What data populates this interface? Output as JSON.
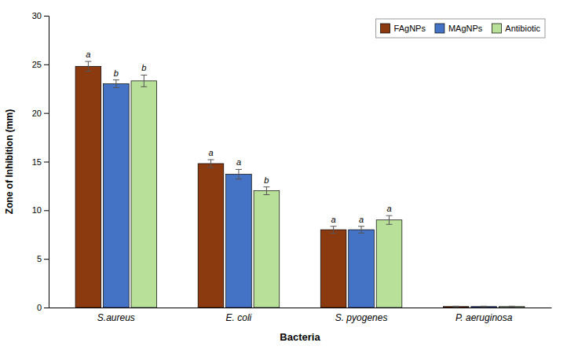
{
  "chart_data": {
    "type": "bar",
    "xlabel": "Bacteria",
    "ylabel": "Zone of Inhibition (mm)",
    "categories": [
      "S.aureus",
      "E. coli",
      "S. pyogenes",
      "P. aeruginosa"
    ],
    "series": [
      {
        "name": "FAgNPs",
        "color": "#8B3A0F",
        "values": [
          24.8,
          14.8,
          8.0,
          0.1
        ],
        "errors": [
          0.5,
          0.4,
          0.35,
          0.04
        ],
        "letters": [
          "a",
          "a",
          "a",
          null
        ]
      },
      {
        "name": "MAgNPs",
        "color": "#4472C4",
        "values": [
          23.0,
          13.7,
          8.0,
          0.1
        ],
        "errors": [
          0.4,
          0.5,
          0.35,
          0.04
        ],
        "letters": [
          "b",
          "a",
          "a",
          null
        ]
      },
      {
        "name": "Antibiotic",
        "color": "#B8E098",
        "values": [
          23.3,
          12.0,
          9.0,
          0.1
        ],
        "errors": [
          0.6,
          0.4,
          0.45,
          0.04
        ],
        "letters": [
          "b",
          "b",
          "a",
          null
        ]
      }
    ],
    "ylim": [
      0,
      30
    ],
    "yticks": [
      0,
      5,
      10,
      15,
      20,
      25,
      30
    ],
    "grid": false,
    "legend": "upper right"
  }
}
